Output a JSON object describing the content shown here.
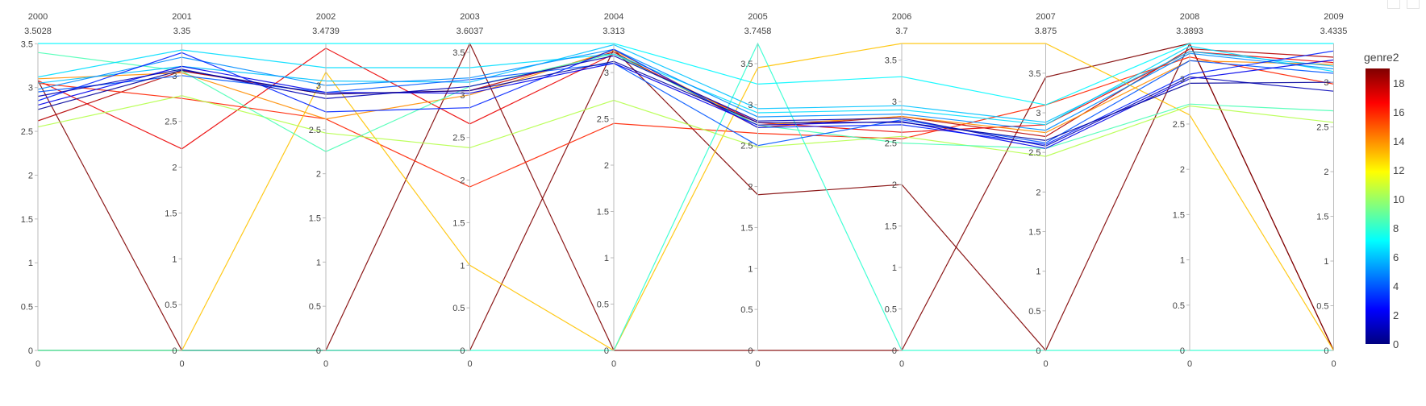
{
  "modebar": {
    "icons": [
      "camera-icon",
      "plotly-logo-icon"
    ]
  },
  "chart_data": {
    "type": "parallel_coordinates",
    "dimensions": [
      {
        "label": "2000",
        "max_label": "3.5028",
        "range": [
          0,
          3.5028
        ],
        "ticks": [
          0,
          0.5,
          1,
          1.5,
          2,
          2.5,
          3,
          3.5
        ]
      },
      {
        "label": "2001",
        "max_label": "3.35",
        "range": [
          0,
          3.35
        ],
        "ticks": [
          0,
          0.5,
          1,
          1.5,
          2,
          2.5,
          3
        ]
      },
      {
        "label": "2002",
        "max_label": "3.4739",
        "range": [
          0,
          3.4739
        ],
        "ticks": [
          0,
          0.5,
          1,
          1.5,
          2,
          2.5,
          3
        ]
      },
      {
        "label": "2003",
        "max_label": "3.6037",
        "range": [
          0,
          3.6037
        ],
        "ticks": [
          0,
          0.5,
          1,
          1.5,
          2,
          2.5,
          3,
          3.5
        ]
      },
      {
        "label": "2004",
        "max_label": "3.313",
        "range": [
          0,
          3.313
        ],
        "ticks": [
          0,
          0.5,
          1,
          1.5,
          2,
          2.5,
          3
        ]
      },
      {
        "label": "2005",
        "max_label": "3.7458",
        "range": [
          0,
          3.7458
        ],
        "ticks": [
          0,
          0.5,
          1,
          1.5,
          2,
          2.5,
          3,
          3.5
        ]
      },
      {
        "label": "2006",
        "max_label": "3.7",
        "range": [
          0,
          3.7
        ],
        "ticks": [
          0,
          0.5,
          1,
          1.5,
          2,
          2.5,
          3,
          3.5
        ]
      },
      {
        "label": "2007",
        "max_label": "3.875",
        "range": [
          0,
          3.875
        ],
        "ticks": [
          0,
          0.5,
          1,
          1.5,
          2,
          2.5,
          3,
          3.5
        ]
      },
      {
        "label": "2008",
        "max_label": "3.3893",
        "range": [
          0,
          3.3893
        ],
        "ticks": [
          0,
          0.5,
          1,
          1.5,
          2,
          2.5,
          3
        ]
      },
      {
        "label": "2009",
        "max_label": "3.4335",
        "range": [
          0,
          3.4335
        ],
        "ticks": [
          0,
          0.5,
          1,
          1.5,
          2,
          2.5,
          3
        ]
      }
    ],
    "color_variable": "genre2",
    "colorscale": [
      "#000080",
      "#0000ff",
      "#0080ff",
      "#00ffff",
      "#80ff80",
      "#ffff00",
      "#ff8000",
      "#ff0000",
      "#800000"
    ],
    "color_range": [
      0,
      19
    ],
    "colorbar_ticks": [
      0,
      2,
      4,
      6,
      8,
      10,
      12,
      14,
      16,
      18
    ],
    "lines": [
      {
        "genre2": 19,
        "values": [
          3.08,
          0.0,
          0.0,
          3.6037,
          0.0,
          0.0,
          0.0,
          3.45,
          3.3893,
          0.0
        ]
      },
      {
        "genre2": 19,
        "values": [
          0.0,
          0.0,
          0.0,
          0.0,
          3.25,
          1.9,
          2.0,
          0.0,
          3.3893,
          0.0
        ]
      },
      {
        "genre2": 18,
        "values": [
          2.62,
          3.05,
          2.9,
          3.05,
          3.22,
          2.72,
          2.82,
          2.7,
          3.33,
          3.28
        ]
      },
      {
        "genre2": 17,
        "values": [
          3.08,
          2.2,
          3.42,
          2.66,
          3.2,
          2.78,
          2.63,
          2.85,
          3.3,
          3.22
        ]
      },
      {
        "genre2": 16,
        "values": [
          3.05,
          2.75,
          2.62,
          1.92,
          2.45,
          2.65,
          2.55,
          3.1,
          3.24,
          2.98
        ]
      },
      {
        "genre2": 14,
        "values": [
          3.1,
          3.03,
          2.62,
          3.0,
          3.24,
          2.75,
          2.82,
          2.75,
          3.2,
          3.2
        ]
      },
      {
        "genre2": 13,
        "values": [
          0.0,
          0.0,
          3.15,
          1.0,
          0.0,
          3.45,
          3.7,
          3.875,
          2.6,
          0.0
        ]
      },
      {
        "genre2": 10.5,
        "values": [
          2.55,
          2.78,
          2.46,
          2.38,
          2.7,
          2.48,
          2.58,
          2.45,
          2.7,
          2.55
        ]
      },
      {
        "genre2": 8.5,
        "values": [
          3.4,
          3.05,
          2.25,
          3.1,
          3.2,
          2.75,
          2.5,
          2.55,
          2.72,
          2.68
        ]
      },
      {
        "genre2": 8,
        "values": [
          0.0,
          0.0,
          0.0,
          0.0,
          0.0,
          3.7458,
          0.0,
          0.0,
          0.0,
          0.0
        ]
      },
      {
        "genre2": 7,
        "values": [
          3.5028,
          3.35,
          3.4739,
          3.6037,
          3.313,
          3.25,
          3.3,
          3.1,
          3.3893,
          3.4335
        ]
      },
      {
        "genre2": 6.5,
        "values": [
          3.12,
          3.28,
          3.2,
          3.32,
          3.2,
          2.9,
          2.9,
          2.85,
          3.36,
          3.12
        ]
      },
      {
        "genre2": 6,
        "values": [
          3.05,
          3.1,
          3.05,
          3.15,
          3.3,
          2.95,
          2.95,
          2.88,
          3.3,
          3.18
        ]
      },
      {
        "genre2": 5,
        "values": [
          2.98,
          3.2,
          3.0,
          3.2,
          3.25,
          2.85,
          2.85,
          2.78,
          3.28,
          3.15
        ]
      },
      {
        "genre2": 4,
        "values": [
          2.95,
          3.0,
          2.92,
          3.18,
          3.1,
          2.5,
          2.78,
          2.62,
          3.2,
          3.1
        ]
      },
      {
        "genre2": 3,
        "values": [
          2.85,
          3.25,
          2.7,
          2.85,
          3.25,
          2.72,
          2.72,
          2.6,
          3.05,
          3.35
        ]
      },
      {
        "genre2": 2,
        "values": [
          2.8,
          3.1,
          2.92,
          3.02,
          3.1,
          2.75,
          2.76,
          2.55,
          3.0,
          3.25
        ]
      },
      {
        "genre2": 1,
        "values": [
          2.9,
          3.07,
          2.85,
          3.1,
          3.18,
          2.8,
          2.8,
          2.58,
          3.02,
          2.9
        ]
      },
      {
        "genre2": 0.5,
        "values": [
          2.75,
          3.06,
          2.9,
          3.05,
          3.12,
          2.78,
          2.75,
          2.65,
          2.95,
          3.0
        ]
      }
    ]
  }
}
